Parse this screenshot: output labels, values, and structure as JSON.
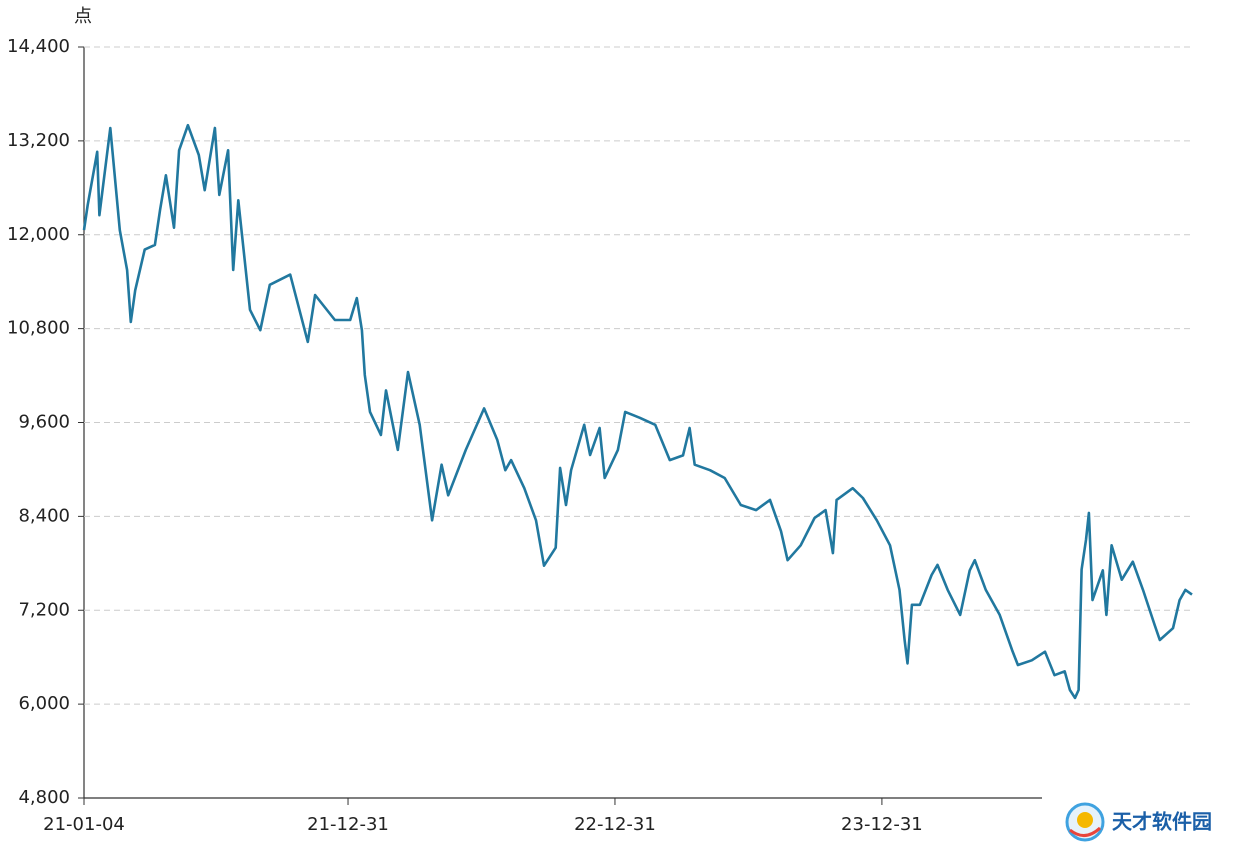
{
  "chart_data": {
    "type": "line",
    "y_label": "点",
    "color": "#21789f",
    "grid": true,
    "xlim": [
      "21-01-04",
      "25-02-27"
    ],
    "xticks": [
      "21-01-04",
      "21-12-31",
      "22-12-31",
      "23-12-31"
    ],
    "ylim": [
      4800,
      14400
    ],
    "yticks": [
      {
        "value": 4800,
        "label": "4,800"
      },
      {
        "value": 6000,
        "label": "6,000"
      },
      {
        "value": 7200,
        "label": "7,200"
      },
      {
        "value": 8400,
        "label": "8,400"
      },
      {
        "value": 9600,
        "label": "9,600"
      },
      {
        "value": 10800,
        "label": "10,800"
      },
      {
        "value": 12000,
        "label": "12,000"
      },
      {
        "value": 13200,
        "label": "13,200"
      },
      {
        "value": 14400,
        "label": "14,400"
      }
    ],
    "x": [
      "21-01-04",
      "21-01-09",
      "21-01-22",
      "21-01-25",
      "21-02-09",
      "21-02-22",
      "21-03-04",
      "21-03-09",
      "21-03-15",
      "21-03-28",
      "21-04-11",
      "21-04-18",
      "21-04-26",
      "21-05-07",
      "21-05-14",
      "21-05-26",
      "21-06-10",
      "21-06-18",
      "21-07-02",
      "21-07-08",
      "21-07-20",
      "21-07-27",
      "21-08-03",
      "21-08-19",
      "21-09-02",
      "21-09-15",
      "21-10-13",
      "21-11-06",
      "21-11-16",
      "21-12-13",
      "22-01-03",
      "22-01-12",
      "22-01-19",
      "22-01-23",
      "22-01-30",
      "22-02-14",
      "22-02-21",
      "22-03-09",
      "22-03-23",
      "22-04-08",
      "22-04-25",
      "22-05-08",
      "22-05-17",
      "22-06-10",
      "22-07-05",
      "22-07-23",
      "22-08-03",
      "22-08-11",
      "22-08-29",
      "22-09-14",
      "22-09-25",
      "22-10-11",
      "22-10-17",
      "22-10-25",
      "22-11-01",
      "22-11-19",
      "22-11-27",
      "22-12-10",
      "22-12-17",
      "23-01-04",
      "23-01-14",
      "23-02-03",
      "23-02-24",
      "23-03-16",
      "23-04-03",
      "23-04-12",
      "23-04-19",
      "23-05-10",
      "23-05-30",
      "23-06-21",
      "23-07-12",
      "23-07-31",
      "23-08-15",
      "23-08-24",
      "23-09-11",
      "23-09-30",
      "23-10-15",
      "23-10-25",
      "23-10-30",
      "23-11-21",
      "23-12-05",
      "23-12-24",
      "24-01-11",
      "24-01-24",
      "24-01-31",
      "24-02-04",
      "24-02-10",
      "24-02-21",
      "24-03-08",
      "24-03-16",
      "24-03-30",
      "24-04-16",
      "24-04-29",
      "24-05-06",
      "24-05-21",
      "24-06-09",
      "24-06-26",
      "24-07-04",
      "24-07-23",
      "24-08-10",
      "24-08-23",
      "24-09-06",
      "24-09-13",
      "24-09-20",
      "24-09-25",
      "24-09-29",
      "24-10-05",
      "24-10-09",
      "24-10-14",
      "24-10-28",
      "24-11-02",
      "24-11-09",
      "24-11-23",
      "24-12-08",
      "24-12-22",
      "25-01-07",
      "25-01-14",
      "25-02-01",
      "25-02-10",
      "25-02-18",
      "25-02-27"
    ],
    "values": [
      12060,
      12380,
      13060,
      12250,
      13365,
      12060,
      11550,
      10885,
      11290,
      11810,
      11870,
      12320,
      12760,
      12090,
      13080,
      13400,
      13020,
      12570,
      13365,
      12510,
      13080,
      11550,
      12440,
      11040,
      10780,
      11360,
      11490,
      10630,
      11230,
      10910,
      10910,
      11190,
      10780,
      10207,
      9735,
      9440,
      10010,
      9250,
      10245,
      9570,
      8350,
      9060,
      8670,
      9250,
      9780,
      9380,
      8990,
      9120,
      8760,
      8350,
      7770,
      8000,
      9020,
      8545,
      8990,
      9570,
      9185,
      9530,
      8890,
      9250,
      9735,
      9660,
      9570,
      9120,
      9180,
      9530,
      9060,
      8990,
      8890,
      8545,
      8480,
      8610,
      8210,
      7840,
      8030,
      8380,
      8480,
      7930,
      8610,
      8760,
      8635,
      8350,
      8030,
      7460,
      6820,
      6520,
      7270,
      7270,
      7650,
      7780,
      7460,
      7140,
      7710,
      7840,
      7460,
      7140,
      6690,
      6500,
      6560,
      6670,
      6370,
      6420,
      6180,
      6080,
      6180,
      7720,
      8100,
      8445,
      7330,
      7710,
      7140,
      8030,
      7590,
      7820,
      7460,
      7010,
      6820,
      6970,
      7330,
      7460,
      7400
    ]
  },
  "watermark": "天才软件园"
}
